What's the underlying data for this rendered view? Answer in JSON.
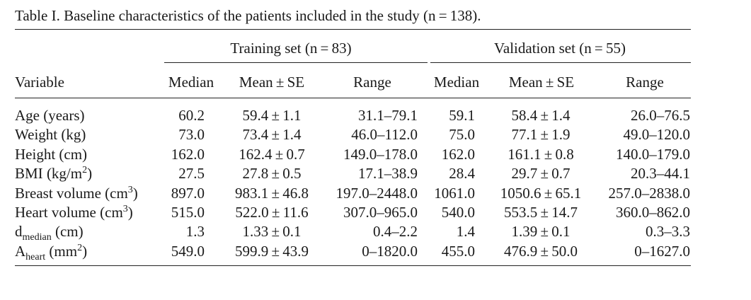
{
  "caption": "Table I. Baseline characteristics of the patients included in the study (n = 138).",
  "groups": {
    "training": "Training set (n = 83)",
    "validation": "Validation set (n = 55)"
  },
  "columns": {
    "variable": "Variable",
    "median": "Median",
    "mean_se": "Mean ± SE",
    "range": "Range"
  },
  "rows": [
    {
      "label": "Age (years)",
      "label_sub": "",
      "label_unit": "",
      "label_sup": "",
      "label_close": "",
      "training": {
        "median": "60.2",
        "mean_se": "59.4 ± 1.1",
        "range": "31.1–79.1"
      },
      "validation": {
        "median": "59.1",
        "mean_se": "58.4 ± 1.4",
        "range": "26.0–76.5"
      }
    },
    {
      "label": "Weight (kg)",
      "label_sub": "",
      "label_unit": "",
      "label_sup": "",
      "label_close": "",
      "training": {
        "median": "73.0",
        "mean_se": "73.4 ± 1.4",
        "range": "46.0–112.0"
      },
      "validation": {
        "median": "75.0",
        "mean_se": "77.1 ± 1.9",
        "range": "49.0–120.0"
      }
    },
    {
      "label": "Height (cm)",
      "label_sub": "",
      "label_unit": "",
      "label_sup": "",
      "label_close": "",
      "training": {
        "median": "162.0",
        "mean_se": "162.4 ± 0.7",
        "range": "149.0–178.0"
      },
      "validation": {
        "median": "162.0",
        "mean_se": "161.1 ± 0.8",
        "range": "140.0–179.0"
      }
    },
    {
      "label": "BMI",
      "label_sub": "",
      "label_unit": " (kg/m",
      "label_sup": "2",
      "label_close": ")",
      "training": {
        "median": "27.5",
        "mean_se": "27.8 ± 0.5",
        "range": "17.1–38.9"
      },
      "validation": {
        "median": "28.4",
        "mean_se": "29.7 ± 0.7",
        "range": "20.3–44.1"
      }
    },
    {
      "label": "Breast volume",
      "label_sub": "",
      "label_unit": " (cm",
      "label_sup": "3",
      "label_close": ")",
      "training": {
        "median": "897.0",
        "mean_se": "983.1 ± 46.8",
        "range": "197.0–2448.0"
      },
      "validation": {
        "median": "1061.0",
        "mean_se": "1050.6 ± 65.1",
        "range": "257.0–2838.0"
      }
    },
    {
      "label": "Heart volume",
      "label_sub": "",
      "label_unit": " (cm",
      "label_sup": "3",
      "label_close": ")",
      "training": {
        "median": "515.0",
        "mean_se": "522.0 ± 11.6",
        "range": "307.0–965.0"
      },
      "validation": {
        "median": "540.0",
        "mean_se": "553.5 ± 14.7",
        "range": "360.0–862.0"
      }
    },
    {
      "label": "d",
      "label_sub": "median",
      "label_unit": " (cm)",
      "label_sup": "",
      "label_close": "",
      "training": {
        "median": "1.3",
        "mean_se": "1.33 ± 0.1",
        "range": "0.4–2.2"
      },
      "validation": {
        "median": "1.4",
        "mean_se": "1.39 ± 0.1",
        "range": "0.3–3.3"
      }
    },
    {
      "label": "A",
      "label_sub": "heart",
      "label_unit": " (mm",
      "label_sup": "2",
      "label_close": ")",
      "training": {
        "median": "549.0",
        "mean_se": "599.9 ± 43.9",
        "range": "0–1820.0"
      },
      "validation": {
        "median": "455.0",
        "mean_se": "476.9 ± 50.0",
        "range": "0–1627.0"
      }
    }
  ]
}
